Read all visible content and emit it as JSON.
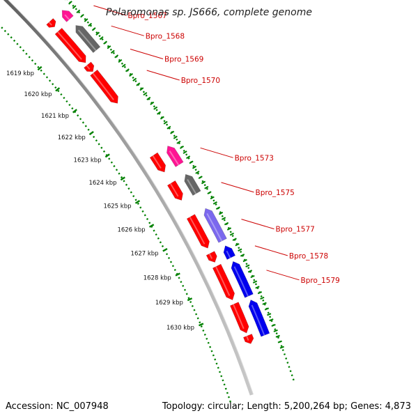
{
  "title": "Polaromonas sp. JS666, complete genome",
  "footer": {
    "accession": "Accession: NC_007948",
    "summary": "Topology: circular; Length: 5,200,264 bp; Genes: 4,873"
  },
  "colors": {
    "backbone": "#8a8a8a",
    "scale_dots": "#008000",
    "forward_gene": "#ff0000",
    "reverse_gene": "#0000ee",
    "grey_gene": "#666666",
    "pink_gene": "#ff1493",
    "lavender_gene": "#7b68ee",
    "label": "#cc0000"
  },
  "scale": {
    "unit": "kbp",
    "ticks": [
      {
        "kbp": 1619,
        "label": "1619 kbp"
      },
      {
        "kbp": 1620,
        "label": "1620 kbp"
      },
      {
        "kbp": 1621,
        "label": "1621 kbp"
      },
      {
        "kbp": 1622,
        "label": "1622 kbp"
      },
      {
        "kbp": 1623,
        "label": "1623 kbp"
      },
      {
        "kbp": 1624,
        "label": "1624 kbp"
      },
      {
        "kbp": 1625,
        "label": "1625 kbp"
      },
      {
        "kbp": 1626,
        "label": "1626 kbp"
      },
      {
        "kbp": 1627,
        "label": "1627 kbp"
      },
      {
        "kbp": 1628,
        "label": "1628 kbp"
      },
      {
        "kbp": 1629,
        "label": "1629 kbp"
      },
      {
        "kbp": 1630,
        "label": "1630 kbp"
      }
    ]
  },
  "gene_labels": [
    {
      "name": "Bpro_1567",
      "kbp": 1618.6
    },
    {
      "name": "Bpro_1568",
      "kbp": 1619.5
    },
    {
      "name": "Bpro_1569",
      "kbp": 1620.5
    },
    {
      "name": "Bpro_1570",
      "kbp": 1621.4
    },
    {
      "name": "Bpro_1573",
      "kbp": 1624.55
    },
    {
      "name": "Bpro_1575",
      "kbp": 1625.9
    },
    {
      "name": "Bpro_1577",
      "kbp": 1627.3
    },
    {
      "name": "Bpro_1578",
      "kbp": 1628.3
    },
    {
      "name": "Bpro_1579",
      "kbp": 1629.2
    }
  ],
  "features": [
    {
      "name": "forward-gene",
      "lane": "fwd-outer",
      "start": 1618.0,
      "end": 1618.25,
      "color": "forward_gene",
      "dir": 1
    },
    {
      "name": "forward-gene",
      "lane": "fwd-outer",
      "start": 1618.45,
      "end": 1619.9,
      "color": "forward_gene",
      "dir": 1
    },
    {
      "name": "forward-gene",
      "lane": "fwd-outer",
      "start": 1620.0,
      "end": 1620.3,
      "color": "forward_gene",
      "dir": 1
    },
    {
      "name": "forward-gene",
      "lane": "fwd-outer",
      "start": 1620.35,
      "end": 1621.7,
      "color": "forward_gene",
      "dir": 1
    },
    {
      "name": "forward-gene",
      "lane": "fwd-outer",
      "start": 1623.9,
      "end": 1624.6,
      "color": "forward_gene",
      "dir": 1
    },
    {
      "name": "forward-gene",
      "lane": "fwd-outer",
      "start": 1625.05,
      "end": 1625.75,
      "color": "forward_gene",
      "dir": 1
    },
    {
      "name": "forward-gene",
      "lane": "fwd-outer",
      "start": 1626.4,
      "end": 1627.65,
      "color": "forward_gene",
      "dir": 1
    },
    {
      "name": "forward-gene",
      "lane": "fwd-outer",
      "start": 1627.85,
      "end": 1628.2,
      "color": "forward_gene",
      "dir": 1
    },
    {
      "name": "forward-gene",
      "lane": "fwd-outer",
      "start": 1628.35,
      "end": 1629.65,
      "color": "forward_gene",
      "dir": 1
    },
    {
      "name": "forward-gene",
      "lane": "fwd-outer",
      "start": 1629.8,
      "end": 1630.9,
      "color": "forward_gene",
      "dir": 1
    },
    {
      "name": "forward-gene",
      "lane": "fwd-outer",
      "start": 1631.0,
      "end": 1631.3,
      "color": "forward_gene",
      "dir": 1
    },
    {
      "name": "highlight-gene",
      "lane": "rev-inner",
      "start": 1618.0,
      "end": 1618.4,
      "color": "pink_gene",
      "dir": -1
    },
    {
      "name": "pseudo-gene",
      "lane": "rev-inner",
      "start": 1618.7,
      "end": 1619.8,
      "color": "grey_gene",
      "dir": -1
    },
    {
      "name": "highlight-gene",
      "lane": "rev-inner",
      "start": 1623.9,
      "end": 1624.65,
      "color": "pink_gene",
      "dir": -1
    },
    {
      "name": "pseudo-gene",
      "lane": "rev-inner",
      "start": 1625.05,
      "end": 1625.8,
      "color": "grey_gene",
      "dir": -1
    },
    {
      "name": "misc-gene",
      "lane": "rev-inner",
      "start": 1626.4,
      "end": 1627.65,
      "color": "lavender_gene",
      "dir": -1
    },
    {
      "name": "reverse-gene",
      "lane": "rev-inner",
      "start": 1627.85,
      "end": 1628.3,
      "color": "reverse_gene",
      "dir": -1
    },
    {
      "name": "reverse-gene",
      "lane": "rev-inner",
      "start": 1628.45,
      "end": 1629.75,
      "color": "reverse_gene",
      "dir": -1
    },
    {
      "name": "reverse-gene",
      "lane": "rev-inner",
      "start": 1629.9,
      "end": 1631.2,
      "color": "reverse_gene",
      "dir": -1
    }
  ]
}
